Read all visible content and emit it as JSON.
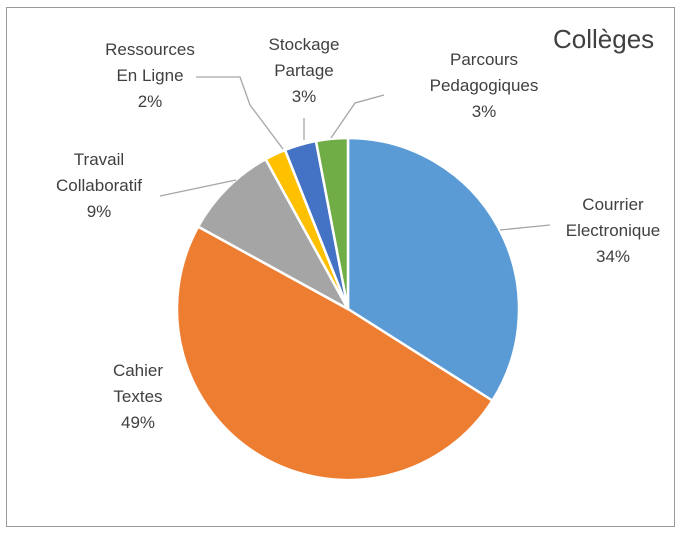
{
  "chart_data": {
    "type": "pie",
    "title": "Collèges",
    "slices": [
      {
        "label": [
          "Courrier",
          "Electronique"
        ],
        "value": 34,
        "display": "34%",
        "color": "#5B9BD5"
      },
      {
        "label": [
          "Cahier",
          "Textes"
        ],
        "value": 49,
        "display": "49%",
        "color": "#ED7D31"
      },
      {
        "label": [
          "Travail",
          "Collaboratif"
        ],
        "value": 9,
        "display": "9%",
        "color": "#A5A5A5"
      },
      {
        "label": [
          "Ressources",
          "En Ligne"
        ],
        "value": 2,
        "display": "2%",
        "color": "#FFC000"
      },
      {
        "label": [
          "Stockage",
          "Partage"
        ],
        "value": 3,
        "display": "3%",
        "color": "#4472C4"
      },
      {
        "label": [
          "Parcours",
          "Pedagogiques"
        ],
        "value": 3,
        "display": "3%",
        "color": "#70AD47"
      }
    ]
  }
}
